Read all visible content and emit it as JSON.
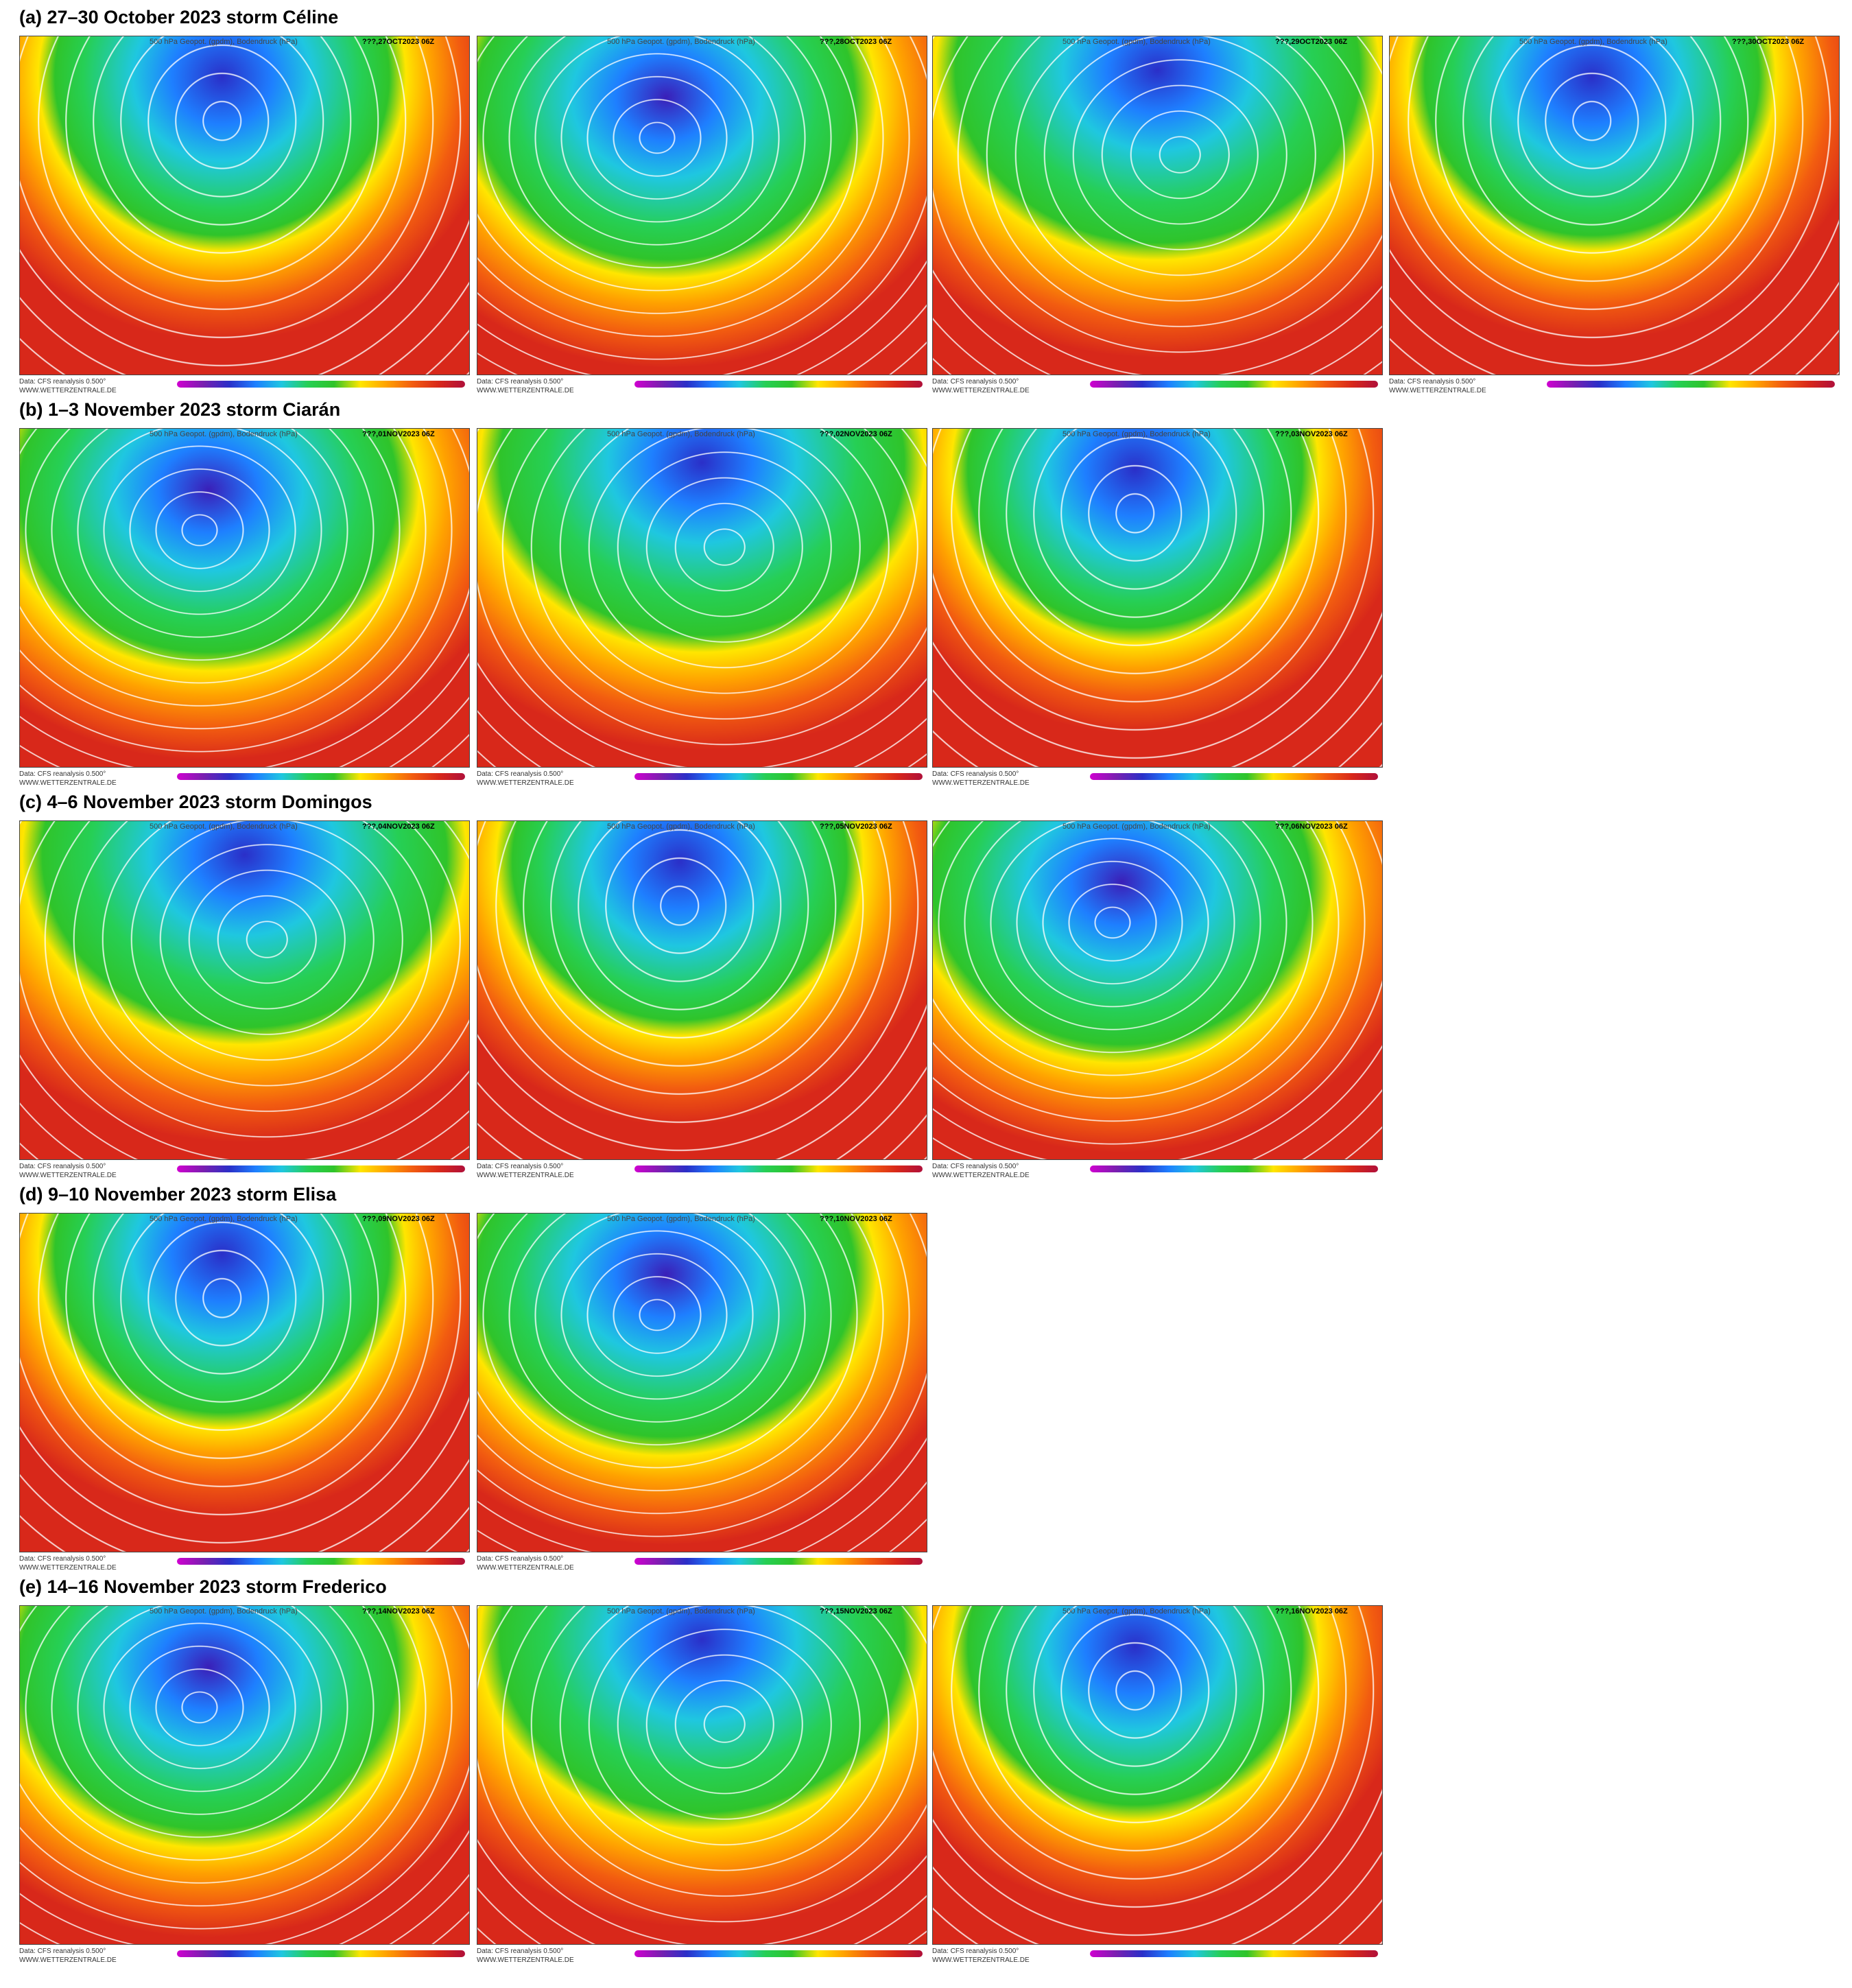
{
  "rows": [
    {
      "title": "(a) 27–30 October 2023 storm Céline",
      "panels": [
        {
          "header": "500 hPa Geopot. (gpdm), Bodendruck (hPa)",
          "date": "???,27OCT2023 06Z",
          "source": "Data: CFS reanalysis 0.500°",
          "website": "WWW.WETTERZENTRALE.DE"
        },
        {
          "header": "500 hPa Geopot. (gpdm), Bodendruck (hPa)",
          "date": "???,28OCT2023 06Z",
          "source": "Data: CFS reanalysis 0.500°",
          "website": "WWW.WETTERZENTRALE.DE"
        },
        {
          "header": "500 hPa Geopot. (gpdm), Bodendruck (hPa)",
          "date": "???,29OCT2023 06Z",
          "source": "Data: CFS reanalysis 0.500°",
          "website": "WWW.WETTERZENTRALE.DE"
        },
        {
          "header": "500 hPa Geopot. (gpdm), Bodendruck (hPa)",
          "date": "???,30OCT2023 06Z",
          "source": "Data: CFS reanalysis 0.500°",
          "website": "WWW.WETTERZENTRALE.DE"
        }
      ]
    },
    {
      "title": "(b) 1–3 November 2023 storm Ciarán",
      "panels": [
        {
          "header": "500 hPa Geopot. (gpdm), Bodendruck (hPa)",
          "date": "???,01NOV2023 06Z",
          "source": "Data: CFS reanalysis 0.500°",
          "website": "WWW.WETTERZENTRALE.DE"
        },
        {
          "header": "500 hPa Geopot. (gpdm), Bodendruck (hPa)",
          "date": "???,02NOV2023 06Z",
          "source": "Data: CFS reanalysis 0.500°",
          "website": "WWW.WETTERZENTRALE.DE"
        },
        {
          "header": "500 hPa Geopot. (gpdm), Bodendruck (hPa)",
          "date": "???,03NOV2023 06Z",
          "source": "Data: CFS reanalysis 0.500°",
          "website": "WWW.WETTERZENTRALE.DE"
        }
      ]
    },
    {
      "title": "(c) 4–6 November 2023 storm Domingos",
      "panels": [
        {
          "header": "500 hPa Geopot. (gpdm), Bodendruck (hPa)",
          "date": "???,04NOV2023 06Z",
          "source": "Data: CFS reanalysis 0.500°",
          "website": "WWW.WETTERZENTRALE.DE"
        },
        {
          "header": "500 hPa Geopot. (gpdm), Bodendruck (hPa)",
          "date": "???,05NOV2023 06Z",
          "source": "Data: CFS reanalysis 0.500°",
          "website": "WWW.WETTERZENTRALE.DE"
        },
        {
          "header": "500 hPa Geopot. (gpdm), Bodendruck (hPa)",
          "date": "???,06NOV2023 06Z",
          "source": "Data: CFS reanalysis 0.500°",
          "website": "WWW.WETTERZENTRALE.DE"
        }
      ]
    },
    {
      "title": "(d) 9–10 November 2023 storm Elisa",
      "panels": [
        {
          "header": "500 hPa Geopot. (gpdm), Bodendruck (hPa)",
          "date": "???,09NOV2023 06Z",
          "source": "Data: CFS reanalysis 0.500°",
          "website": "WWW.WETTERZENTRALE.DE"
        },
        {
          "header": "500 hPa Geopot. (gpdm), Bodendruck (hPa)",
          "date": "???,10NOV2023 06Z",
          "source": "Data: CFS reanalysis 0.500°",
          "website": "WWW.WETTERZENTRALE.DE"
        }
      ]
    },
    {
      "title": "(e) 14–16 November 2023 storm Frederico",
      "panels": [
        {
          "header": "500 hPa Geopot. (gpdm), Bodendruck (hPa)",
          "date": "???,14NOV2023 06Z",
          "source": "Data: CFS reanalysis 0.500°",
          "website": "WWW.WETTERZENTRALE.DE"
        },
        {
          "header": "500 hPa Geopot. (gpdm), Bodendruck (hPa)",
          "date": "???,15NOV2023 06Z",
          "source": "Data: CFS reanalysis 0.500°",
          "website": "WWW.WETTERZENTRALE.DE"
        },
        {
          "header": "500 hPa Geopot. (gpdm), Bodendruck (hPa)",
          "date": "???,16NOV2023 06Z",
          "source": "Data: CFS reanalysis 0.500°",
          "website": "WWW.WETTERZENTRALE.DE"
        }
      ]
    }
  ]
}
